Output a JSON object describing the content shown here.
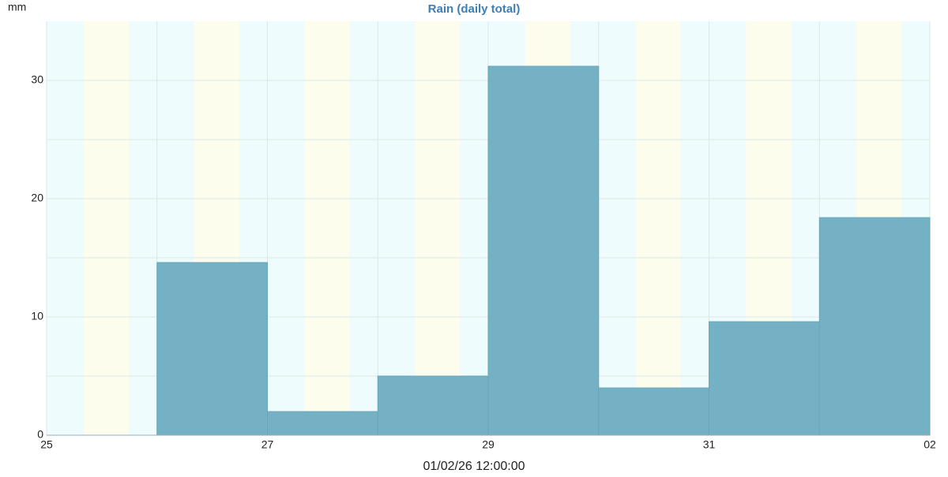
{
  "chart_data": {
    "type": "histogram",
    "title": "Rain (daily total)",
    "ylabel": "mm",
    "xlabel": "01/02/26 12:00:00",
    "bins": [
      "25",
      null,
      "27",
      null,
      "29",
      null,
      "31",
      null,
      "02"
    ],
    "values": [
      0,
      14.6,
      2,
      5,
      31.2,
      4,
      9.6,
      18.4
    ],
    "color": "#74b1c4",
    "ylim": [
      0,
      35
    ],
    "yticks": [
      0,
      10,
      20,
      30
    ],
    "y_minor_ticks": [
      5,
      15,
      25
    ],
    "grid": true
  }
}
